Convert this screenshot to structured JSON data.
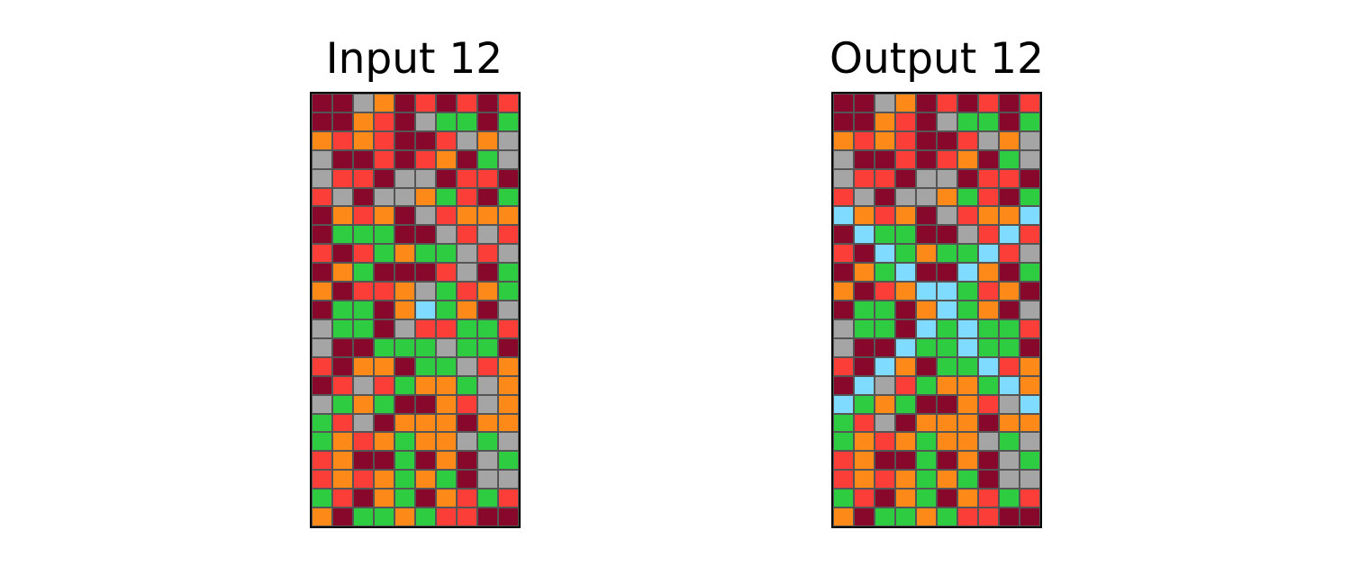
{
  "palette": {
    "M": "#87082a",
    "R": "#fb3f38",
    "G": "#a5a5a5",
    "O": "#fd8a18",
    "N": "#2ecc40",
    "B": "#7fdbff"
  },
  "grid_line_color": "#555555",
  "panels": [
    {
      "title": "Input 12",
      "rows": [
        "MMGOMRMRMR",
        "MMORMGNNMN",
        "ORORMMRGOG",
        "GMMRMROMNG",
        "GRRMGGMRRM",
        "RGMGGONRMN",
        "MOROMGROOO",
        "MNNNMMGRGR",
        "RMRNONNGRG",
        "MONMMMRGMN",
        "OMRROGNRON",
        "MNNMOBNOMG",
        "GNNMGRRNNR",
        "GMMNNNGNNM",
        "RMOOMNNGRO",
        "MRGRNOONGO",
        "GNONMMORGO",
        "NRGMOOOMOO",
        "NORONOOGNG",
        "ROMMNMOMGN",
        "RORONONMGG",
        "NRMONMORNR",
        "OMNNONRRMM"
      ]
    },
    {
      "title": "Output 12",
      "rows": [
        "MMGOMRMRMR",
        "MMORMGNNMN",
        "ORORMMRGOG",
        "GMMRMROMNG",
        "GRRMGGMRRM",
        "RGMGGONRMN",
        "BOROMGROOB",
        "MBNNMMGRBR",
        "RMBNONNBRG",
        "MONBMMBOMN",
        "OMROBBNROM",
        "MNNMOBNOMG",
        "GNNMBNBNNR",
        "GMMBNNBNNM",
        "RMBOMNNBRO",
        "MBGRNOONBO",
        "BNONMMORGB",
        "NRGMOOOMOO",
        "NORONOOGNG",
        "ROMMNMOMGN",
        "RORONONMGG",
        "NRMONMORNR",
        "OMNNONRRMM"
      ]
    }
  ]
}
